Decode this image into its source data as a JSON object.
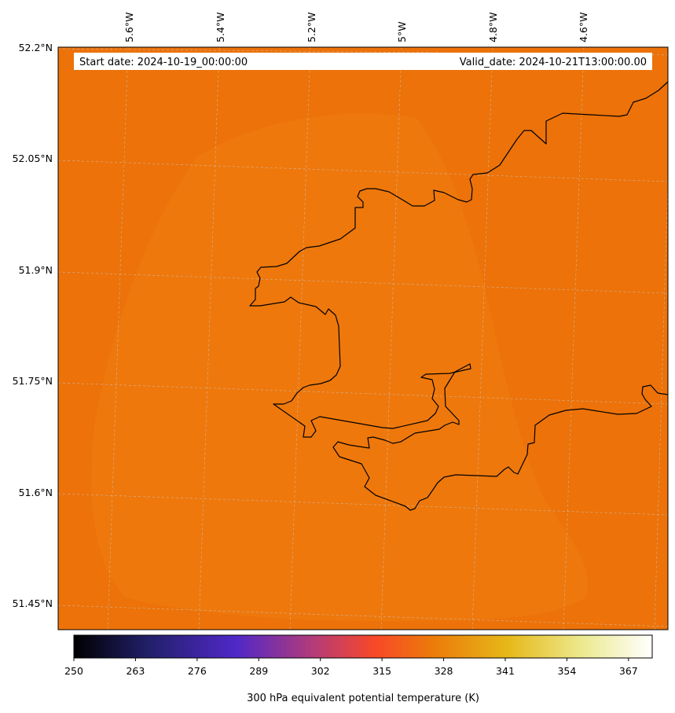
{
  "header": {
    "start_date": "Start date: 2024-10-19_00:00:00",
    "valid_date": "Valid_date: 2024-10-21T13:00:00.00"
  },
  "map": {
    "field_color": "#ec7209",
    "lighter_patch_color": "#ee780c",
    "coastline_color": "#000000",
    "gridline_color": "#c8c8c8"
  },
  "longitude_labels": [
    "5.6°W",
    "5.4°W",
    "5.2°W",
    "5°W",
    "4.8°W",
    "4.6°W"
  ],
  "latitude_labels": [
    "52.2°N",
    "52.05°N",
    "51.9°N",
    "51.75°N",
    "51.6°N",
    "51.45°N"
  ],
  "colorbar": {
    "title": "300 hPa equivalent potential temperature (K)",
    "tick_labels": [
      "250",
      "263",
      "276",
      "289",
      "302",
      "315",
      "328",
      "341",
      "354",
      "367"
    ],
    "range": [
      250,
      372
    ],
    "colors": [
      "#000000",
      "#2a2060",
      "#4a28c8",
      "#b03c78",
      "#f84828",
      "#ec7a0a",
      "#e4b818",
      "#f0ec9c",
      "#ffffff"
    ]
  }
}
